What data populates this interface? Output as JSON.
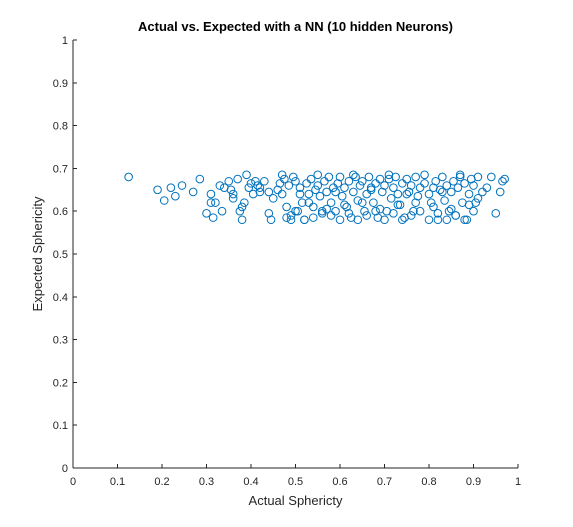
{
  "chart_data": {
    "type": "scatter",
    "title": "Actual vs. Expected with a NN (10 hidden Neurons)",
    "xlabel": "Actual Sphericty",
    "ylabel": "Expected Sphericity",
    "xlim": [
      0,
      1
    ],
    "ylim": [
      0,
      1
    ],
    "xticks": [
      "0",
      "0.1",
      "0.2",
      "0.3",
      "0.4",
      "0.5",
      "0.6",
      "0.7",
      "0.8",
      "0.9",
      "1"
    ],
    "yticks": [
      "0",
      "0.1",
      "0.2",
      "0.3",
      "0.4",
      "0.5",
      "0.6",
      "0.7",
      "0.8",
      "0.9",
      "1"
    ],
    "grid": false,
    "box": false,
    "marker": "open-circle",
    "marker_color": "#0072BD",
    "series": [
      {
        "x": [
          0.125,
          0.19,
          0.205,
          0.22,
          0.23,
          0.245,
          0.27,
          0.285,
          0.3,
          0.31,
          0.315,
          0.32,
          0.33,
          0.335,
          0.34,
          0.35,
          0.355,
          0.36,
          0.37,
          0.375,
          0.38,
          0.385,
          0.39,
          0.395,
          0.4,
          0.405,
          0.41,
          0.415,
          0.42,
          0.43,
          0.44,
          0.445,
          0.45,
          0.46,
          0.465,
          0.47,
          0.475,
          0.48,
          0.485,
          0.49,
          0.495,
          0.5,
          0.505,
          0.51,
          0.515,
          0.52,
          0.525,
          0.53,
          0.535,
          0.54,
          0.545,
          0.55,
          0.555,
          0.56,
          0.565,
          0.57,
          0.575,
          0.58,
          0.585,
          0.59,
          0.595,
          0.6,
          0.605,
          0.61,
          0.615,
          0.62,
          0.625,
          0.63,
          0.635,
          0.64,
          0.645,
          0.65,
          0.655,
          0.66,
          0.665,
          0.67,
          0.675,
          0.68,
          0.685,
          0.69,
          0.695,
          0.7,
          0.705,
          0.71,
          0.715,
          0.72,
          0.725,
          0.73,
          0.735,
          0.74,
          0.745,
          0.75,
          0.755,
          0.76,
          0.765,
          0.77,
          0.775,
          0.78,
          0.79,
          0.8,
          0.805,
          0.81,
          0.815,
          0.82,
          0.825,
          0.83,
          0.835,
          0.84,
          0.845,
          0.85,
          0.855,
          0.86,
          0.865,
          0.87,
          0.875,
          0.88,
          0.885,
          0.89,
          0.895,
          0.9,
          0.905,
          0.91,
          0.92,
          0.93,
          0.94,
          0.95,
          0.96,
          0.965,
          0.97,
          0.49,
          0.5,
          0.52,
          0.54,
          0.56,
          0.58,
          0.6,
          0.62,
          0.64,
          0.66,
          0.68,
          0.7,
          0.72,
          0.74,
          0.76,
          0.78,
          0.8,
          0.82,
          0.84,
          0.86,
          0.88,
          0.9,
          0.48,
          0.53,
          0.57,
          0.61,
          0.65,
          0.69,
          0.73,
          0.77,
          0.81,
          0.85,
          0.89,
          0.47,
          0.55,
          0.63,
          0.71,
          0.79,
          0.87,
          0.51,
          0.59,
          0.67,
          0.75,
          0.83,
          0.91,
          0.36,
          0.42,
          0.44,
          0.31,
          0.38
        ],
        "y": [
          0.68,
          0.65,
          0.625,
          0.655,
          0.635,
          0.66,
          0.645,
          0.675,
          0.595,
          0.64,
          0.585,
          0.62,
          0.66,
          0.6,
          0.655,
          0.67,
          0.65,
          0.64,
          0.675,
          0.6,
          0.58,
          0.62,
          0.685,
          0.655,
          0.665,
          0.64,
          0.67,
          0.66,
          0.645,
          0.67,
          0.595,
          0.58,
          0.63,
          0.65,
          0.665,
          0.64,
          0.675,
          0.585,
          0.66,
          0.59,
          0.68,
          0.67,
          0.6,
          0.655,
          0.62,
          0.58,
          0.665,
          0.64,
          0.675,
          0.61,
          0.65,
          0.66,
          0.635,
          0.595,
          0.67,
          0.645,
          0.68,
          0.62,
          0.655,
          0.6,
          0.665,
          0.68,
          0.635,
          0.655,
          0.61,
          0.67,
          0.585,
          0.645,
          0.68,
          0.625,
          0.66,
          0.67,
          0.6,
          0.64,
          0.68,
          0.655,
          0.62,
          0.665,
          0.585,
          0.675,
          0.645,
          0.66,
          0.6,
          0.675,
          0.63,
          0.655,
          0.68,
          0.64,
          0.615,
          0.665,
          0.585,
          0.675,
          0.645,
          0.66,
          0.6,
          0.68,
          0.635,
          0.655,
          0.665,
          0.64,
          0.62,
          0.655,
          0.67,
          0.58,
          0.65,
          0.68,
          0.625,
          0.66,
          0.6,
          0.645,
          0.67,
          0.59,
          0.655,
          0.68,
          0.62,
          0.665,
          0.58,
          0.64,
          0.675,
          0.66,
          0.62,
          0.68,
          0.645,
          0.655,
          0.68,
          0.595,
          0.645,
          0.67,
          0.675,
          0.58,
          0.6,
          0.58,
          0.585,
          0.6,
          0.59,
          0.58,
          0.595,
          0.58,
          0.59,
          0.6,
          0.58,
          0.595,
          0.58,
          0.59,
          0.6,
          0.58,
          0.595,
          0.58,
          0.59,
          0.58,
          0.6,
          0.61,
          0.62,
          0.605,
          0.615,
          0.62,
          0.605,
          0.615,
          0.62,
          0.61,
          0.605,
          0.615,
          0.685,
          0.685,
          0.685,
          0.685,
          0.685,
          0.685,
          0.64,
          0.645,
          0.65,
          0.64,
          0.645,
          0.63,
          0.63,
          0.655,
          0.645,
          0.62,
          0.61
        ]
      }
    ]
  }
}
